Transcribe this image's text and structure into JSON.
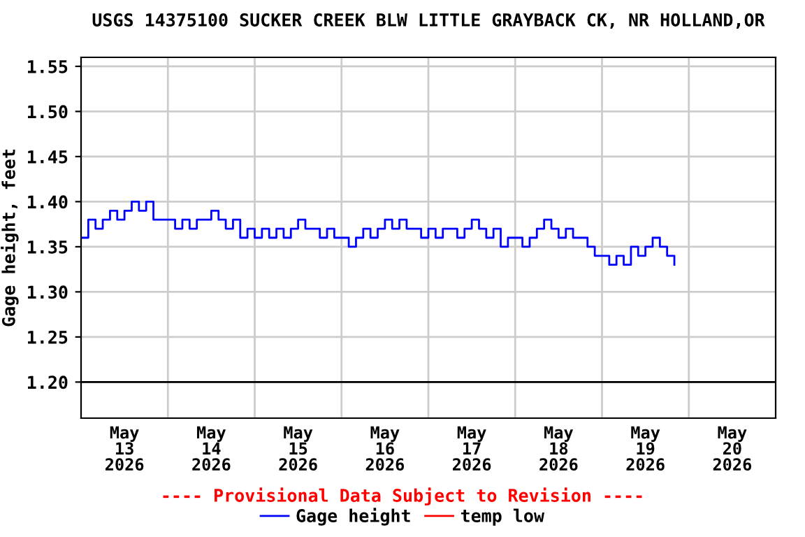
{
  "chart_data": {
    "type": "step",
    "title": "USGS 14375100 SUCKER CREEK BLW LITTLE GRAYBACK CK, NR HOLLAND,OR",
    "ylabel": "Gage height, feet",
    "annotations": [
      "---- Provisional Data Subject to Revision ----"
    ],
    "xlim": [
      "2026-05-13",
      "2026-05-21"
    ],
    "xticks": [
      {
        "value": "2026-05-13T12:00",
        "label": "May\n13\n2026"
      },
      {
        "value": "2026-05-14",
        "label": null
      },
      {
        "value": "2026-05-14T12:00",
        "label": "May\n14\n2026"
      },
      {
        "value": "2026-05-15",
        "label": null
      },
      {
        "value": "2026-05-15T12:00",
        "label": "May\n15\n2026"
      },
      {
        "value": "2026-05-16",
        "label": null
      },
      {
        "value": "2026-05-16T12:00",
        "label": "May\n16\n2026"
      },
      {
        "value": "2026-05-17",
        "label": null
      },
      {
        "value": "2026-05-17T12:00",
        "label": "May\n17\n2026"
      },
      {
        "value": "2026-05-18",
        "label": null
      },
      {
        "value": "2026-05-18T12:00",
        "label": "May\n18\n2026"
      },
      {
        "value": "2026-05-19",
        "label": null
      },
      {
        "value": "2026-05-19T12:00",
        "label": "May\n19\n2026"
      },
      {
        "value": "2026-05-20",
        "label": null
      },
      {
        "value": "2026-05-20T12:00",
        "label": "May\n20\n2026"
      }
    ],
    "ylim": [
      1.16,
      1.56
    ],
    "yticks": [
      {
        "value": 1.2,
        "label": "1.20"
      },
      {
        "value": 1.25,
        "label": "1.25"
      },
      {
        "value": 1.3,
        "label": "1.30"
      },
      {
        "value": 1.35,
        "label": "1.35"
      },
      {
        "value": 1.4,
        "label": "1.40"
      },
      {
        "value": 1.45,
        "label": "1.45"
      },
      {
        "value": 1.5,
        "label": "1.50"
      },
      {
        "value": 1.55,
        "label": "1.55"
      }
    ],
    "grid": true,
    "legend": "bottom",
    "ref_lines": [
      {
        "axis": "y",
        "value": 1.2,
        "label": null,
        "color": "#000000"
      }
    ],
    "series": [
      {
        "name": "Gage height",
        "color": "#0000ff",
        "x": [
          "2026-05-13T00:00",
          "2026-05-13T02:00",
          "2026-05-13T04:00",
          "2026-05-13T06:00",
          "2026-05-13T08:00",
          "2026-05-13T10:00",
          "2026-05-13T12:00",
          "2026-05-13T14:00",
          "2026-05-13T16:00",
          "2026-05-13T18:00",
          "2026-05-13T20:00",
          "2026-05-13T22:00",
          "2026-05-14T00:00",
          "2026-05-14T02:00",
          "2026-05-14T04:00",
          "2026-05-14T06:00",
          "2026-05-14T08:00",
          "2026-05-14T10:00",
          "2026-05-14T12:00",
          "2026-05-14T14:00",
          "2026-05-14T16:00",
          "2026-05-14T18:00",
          "2026-05-14T20:00",
          "2026-05-14T22:00",
          "2026-05-15T00:00",
          "2026-05-15T02:00",
          "2026-05-15T04:00",
          "2026-05-15T06:00",
          "2026-05-15T08:00",
          "2026-05-15T10:00",
          "2026-05-15T12:00",
          "2026-05-15T14:00",
          "2026-05-15T16:00",
          "2026-05-15T18:00",
          "2026-05-15T20:00",
          "2026-05-15T22:00",
          "2026-05-16T00:00",
          "2026-05-16T02:00",
          "2026-05-16T04:00",
          "2026-05-16T06:00",
          "2026-05-16T08:00",
          "2026-05-16T10:00",
          "2026-05-16T12:00",
          "2026-05-16T14:00",
          "2026-05-16T16:00",
          "2026-05-16T18:00",
          "2026-05-16T20:00",
          "2026-05-16T22:00",
          "2026-05-17T00:00",
          "2026-05-17T02:00",
          "2026-05-17T04:00",
          "2026-05-17T06:00",
          "2026-05-17T08:00",
          "2026-05-17T10:00",
          "2026-05-17T12:00",
          "2026-05-17T14:00",
          "2026-05-17T16:00",
          "2026-05-17T18:00",
          "2026-05-17T20:00",
          "2026-05-17T22:00",
          "2026-05-18T00:00",
          "2026-05-18T02:00",
          "2026-05-18T04:00",
          "2026-05-18T06:00",
          "2026-05-18T08:00",
          "2026-05-18T10:00",
          "2026-05-18T12:00",
          "2026-05-18T14:00",
          "2026-05-18T16:00",
          "2026-05-18T18:00",
          "2026-05-18T20:00",
          "2026-05-18T22:00",
          "2026-05-19T00:00",
          "2026-05-19T02:00",
          "2026-05-19T04:00",
          "2026-05-19T06:00",
          "2026-05-19T08:00",
          "2026-05-19T10:00",
          "2026-05-19T12:00",
          "2026-05-19T14:00",
          "2026-05-19T16:00",
          "2026-05-19T18:00",
          "2026-05-19T20:00"
        ],
        "values": [
          1.36,
          1.38,
          1.37,
          1.38,
          1.39,
          1.38,
          1.39,
          1.4,
          1.39,
          1.4,
          1.38,
          1.38,
          1.38,
          1.37,
          1.38,
          1.37,
          1.38,
          1.38,
          1.39,
          1.38,
          1.37,
          1.38,
          1.36,
          1.37,
          1.36,
          1.37,
          1.36,
          1.37,
          1.36,
          1.37,
          1.38,
          1.37,
          1.37,
          1.36,
          1.37,
          1.36,
          1.36,
          1.35,
          1.36,
          1.37,
          1.36,
          1.37,
          1.38,
          1.37,
          1.38,
          1.37,
          1.37,
          1.36,
          1.37,
          1.36,
          1.37,
          1.37,
          1.36,
          1.37,
          1.38,
          1.37,
          1.36,
          1.37,
          1.35,
          1.36,
          1.36,
          1.35,
          1.36,
          1.37,
          1.38,
          1.37,
          1.36,
          1.37,
          1.36,
          1.36,
          1.35,
          1.34,
          1.34,
          1.33,
          1.34,
          1.33,
          1.35,
          1.34,
          1.35,
          1.36,
          1.35,
          1.34,
          1.33
        ]
      },
      {
        "name": "temp low",
        "color": "#ff0000"
      }
    ]
  }
}
